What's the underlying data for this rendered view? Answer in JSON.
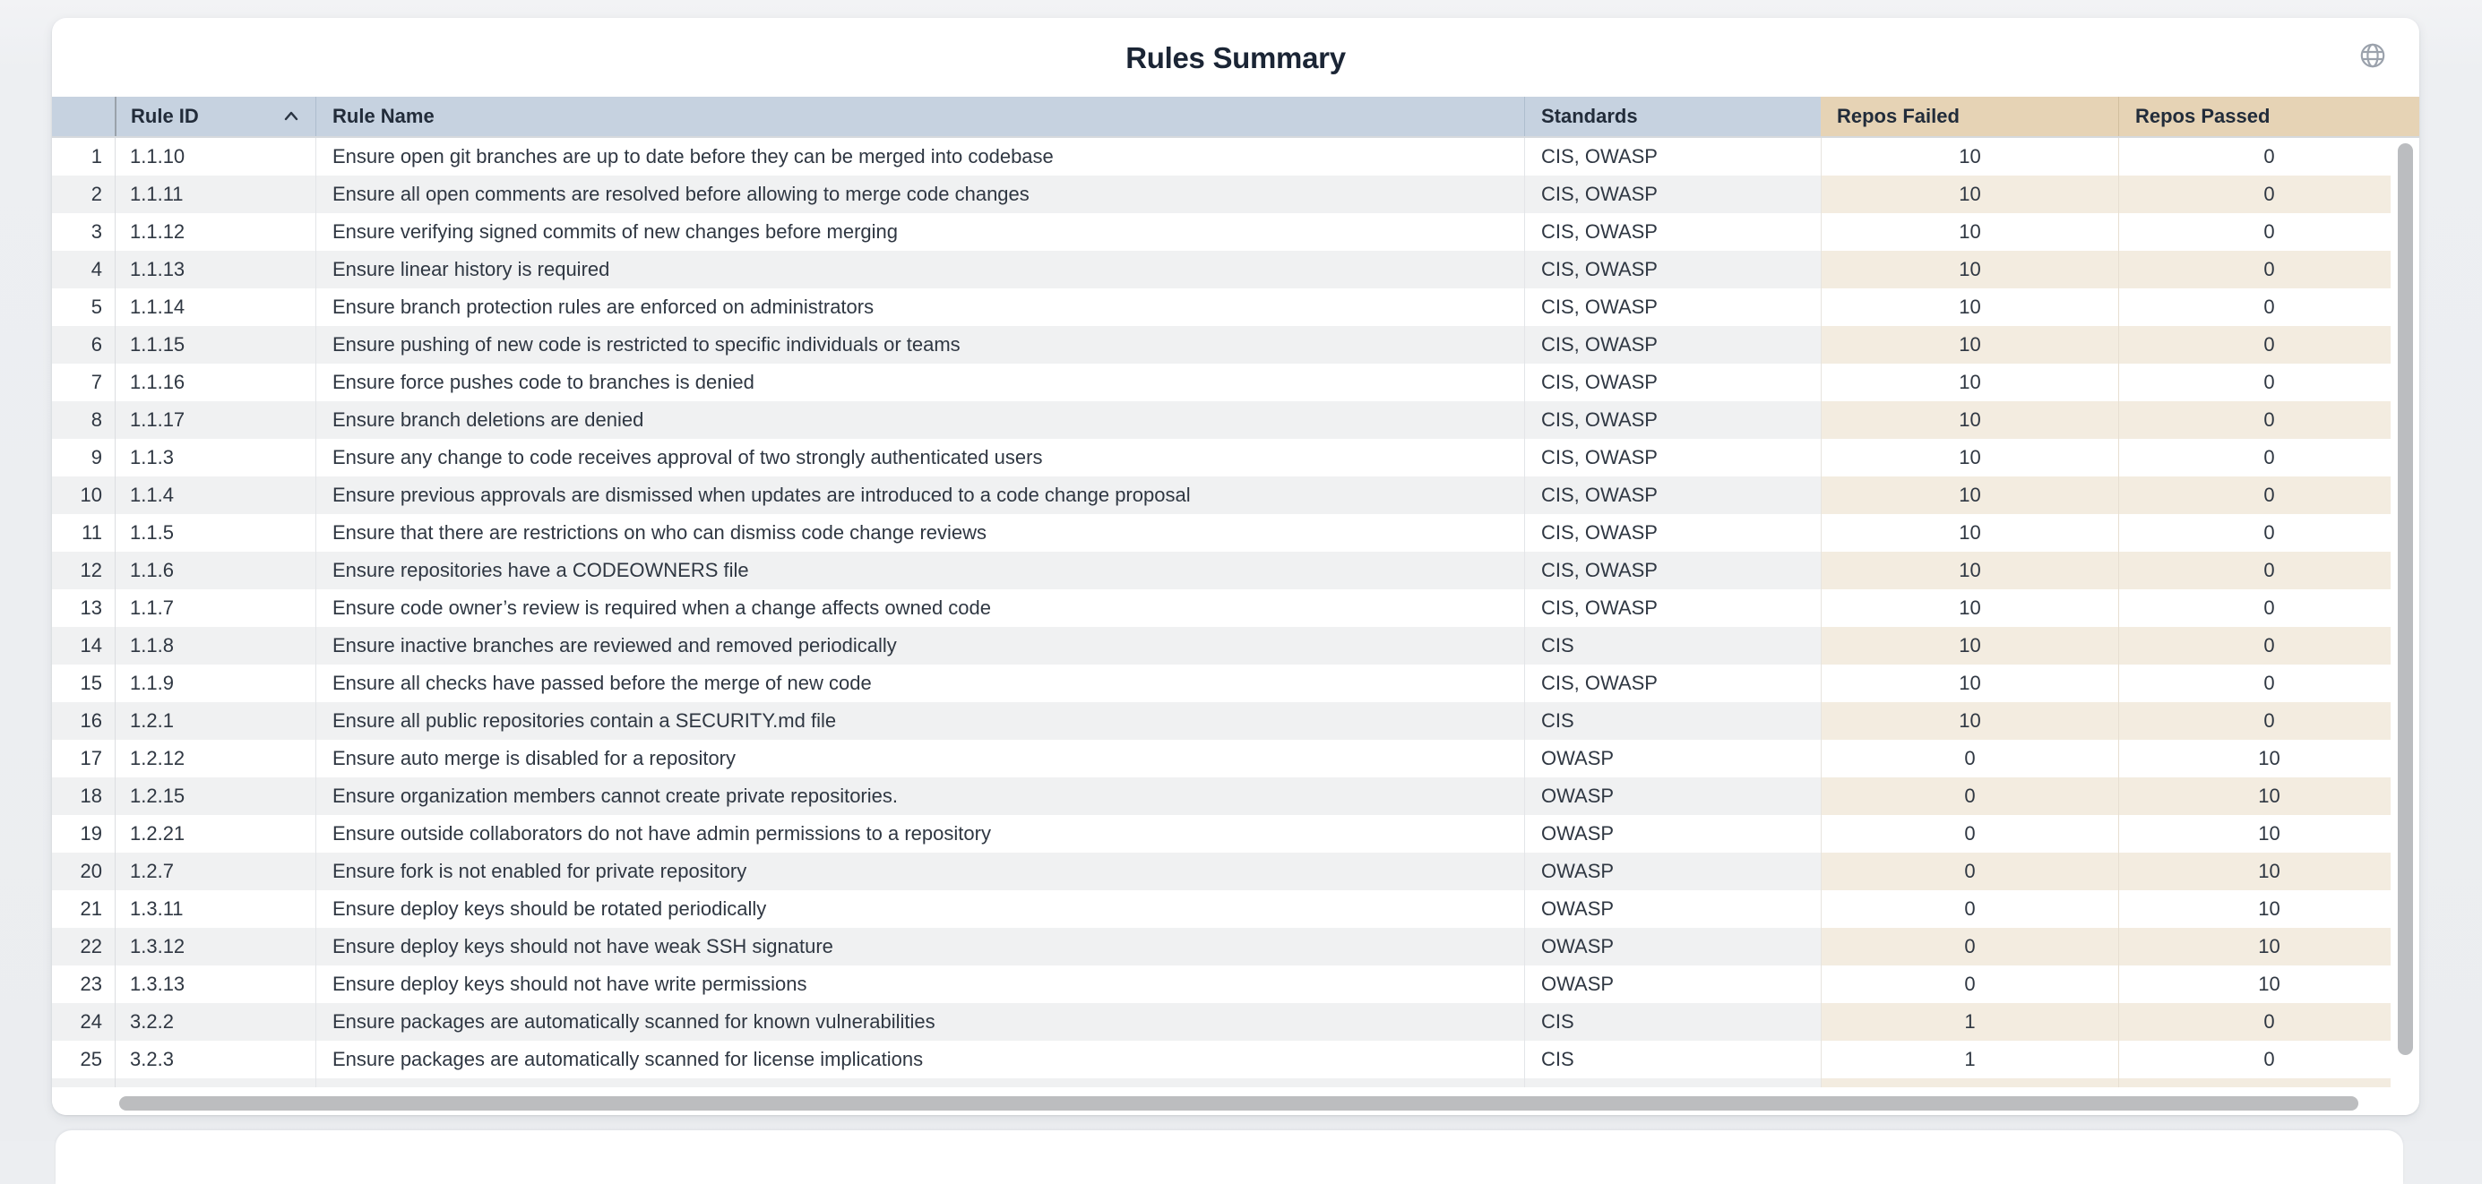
{
  "card": {
    "title": "Rules Summary",
    "header_icon": "globe-icon"
  },
  "table": {
    "columns": [
      {
        "id": "index",
        "label": ""
      },
      {
        "id": "rule_id",
        "label": "Rule ID",
        "sort": "asc"
      },
      {
        "id": "rule_name",
        "label": "Rule Name"
      },
      {
        "id": "standards",
        "label": "Standards"
      },
      {
        "id": "repos_failed",
        "label": "Repos Failed"
      },
      {
        "id": "repos_passed",
        "label": "Repos Passed"
      }
    ],
    "rows": [
      {
        "index": 1,
        "rule_id": "1.1.10",
        "rule_name": "Ensure open git branches are up to date before they can be merged into codebase",
        "standards": "CIS, OWASP",
        "repos_failed": 10,
        "repos_passed": 0
      },
      {
        "index": 2,
        "rule_id": "1.1.11",
        "rule_name": "Ensure all open comments are resolved before allowing to merge code changes",
        "standards": "CIS, OWASP",
        "repos_failed": 10,
        "repos_passed": 0
      },
      {
        "index": 3,
        "rule_id": "1.1.12",
        "rule_name": "Ensure verifying signed commits of new changes before merging",
        "standards": "CIS, OWASP",
        "repos_failed": 10,
        "repos_passed": 0
      },
      {
        "index": 4,
        "rule_id": "1.1.13",
        "rule_name": "Ensure linear history is required",
        "standards": "CIS, OWASP",
        "repos_failed": 10,
        "repos_passed": 0
      },
      {
        "index": 5,
        "rule_id": "1.1.14",
        "rule_name": "Ensure branch protection rules are enforced on administrators",
        "standards": "CIS, OWASP",
        "repos_failed": 10,
        "repos_passed": 0
      },
      {
        "index": 6,
        "rule_id": "1.1.15",
        "rule_name": "Ensure pushing of new code is restricted to specific individuals or teams",
        "standards": "CIS, OWASP",
        "repos_failed": 10,
        "repos_passed": 0
      },
      {
        "index": 7,
        "rule_id": "1.1.16",
        "rule_name": "Ensure force pushes code to branches is denied",
        "standards": "CIS, OWASP",
        "repos_failed": 10,
        "repos_passed": 0
      },
      {
        "index": 8,
        "rule_id": "1.1.17",
        "rule_name": "Ensure branch deletions are denied",
        "standards": "CIS, OWASP",
        "repos_failed": 10,
        "repos_passed": 0
      },
      {
        "index": 9,
        "rule_id": "1.1.3",
        "rule_name": "Ensure any change to code receives approval of two strongly authenticated users",
        "standards": "CIS, OWASP",
        "repos_failed": 10,
        "repos_passed": 0
      },
      {
        "index": 10,
        "rule_id": "1.1.4",
        "rule_name": "Ensure previous approvals are dismissed when updates are introduced to a code change proposal",
        "standards": "CIS, OWASP",
        "repos_failed": 10,
        "repos_passed": 0
      },
      {
        "index": 11,
        "rule_id": "1.1.5",
        "rule_name": "Ensure that there are restrictions on who can dismiss code change reviews",
        "standards": "CIS, OWASP",
        "repos_failed": 10,
        "repos_passed": 0
      },
      {
        "index": 12,
        "rule_id": "1.1.6",
        "rule_name": "Ensure repositories have a CODEOWNERS file",
        "standards": "CIS, OWASP",
        "repos_failed": 10,
        "repos_passed": 0
      },
      {
        "index": 13,
        "rule_id": "1.1.7",
        "rule_name": "Ensure code owner’s review is required when a change affects owned code",
        "standards": "CIS, OWASP",
        "repos_failed": 10,
        "repos_passed": 0
      },
      {
        "index": 14,
        "rule_id": "1.1.8",
        "rule_name": "Ensure inactive branches are reviewed and removed periodically",
        "standards": "CIS",
        "repos_failed": 10,
        "repos_passed": 0
      },
      {
        "index": 15,
        "rule_id": "1.1.9",
        "rule_name": "Ensure all checks have passed before the merge of new code",
        "standards": "CIS, OWASP",
        "repos_failed": 10,
        "repos_passed": 0
      },
      {
        "index": 16,
        "rule_id": "1.2.1",
        "rule_name": "Ensure all public repositories contain a SECURITY.md file",
        "standards": "CIS",
        "repos_failed": 10,
        "repos_passed": 0
      },
      {
        "index": 17,
        "rule_id": "1.2.12",
        "rule_name": "Ensure auto merge is disabled for a repository",
        "standards": "OWASP",
        "repos_failed": 0,
        "repos_passed": 10
      },
      {
        "index": 18,
        "rule_id": "1.2.15",
        "rule_name": "Ensure organization members cannot create private repositories.",
        "standards": "OWASP",
        "repos_failed": 0,
        "repos_passed": 10
      },
      {
        "index": 19,
        "rule_id": "1.2.21",
        "rule_name": "Ensure outside collaborators do not have admin permissions to a repository",
        "standards": "OWASP",
        "repos_failed": 0,
        "repos_passed": 10
      },
      {
        "index": 20,
        "rule_id": "1.2.7",
        "rule_name": "Ensure fork is not enabled for private repository",
        "standards": "OWASP",
        "repos_failed": 0,
        "repos_passed": 10
      },
      {
        "index": 21,
        "rule_id": "1.3.11",
        "rule_name": "Ensure deploy keys should be rotated periodically",
        "standards": "OWASP",
        "repos_failed": 0,
        "repos_passed": 10
      },
      {
        "index": 22,
        "rule_id": "1.3.12",
        "rule_name": "Ensure deploy keys should not have weak SSH signature",
        "standards": "OWASP",
        "repos_failed": 0,
        "repos_passed": 10
      },
      {
        "index": 23,
        "rule_id": "1.3.13",
        "rule_name": "Ensure deploy keys should not have write permissions",
        "standards": "OWASP",
        "repos_failed": 0,
        "repos_passed": 10
      },
      {
        "index": 24,
        "rule_id": "3.2.2",
        "rule_name": "Ensure packages are automatically scanned for known vulnerabilities",
        "standards": "CIS",
        "repos_failed": 1,
        "repos_passed": 0
      },
      {
        "index": 25,
        "rule_id": "3.2.3",
        "rule_name": "Ensure packages are automatically scanned for license implications",
        "standards": "CIS",
        "repos_failed": 1,
        "repos_passed": 0
      }
    ]
  },
  "colors": {
    "header_blue": "#c6d2e0",
    "header_tan": "#e6d3b5",
    "stripe_gray": "#f0f1f2",
    "stripe_tan": "#f3ece0",
    "title_text": "#1b2535",
    "cell_text": "#2f3742",
    "scrollbar_thumb": "#bcbdbf",
    "globe_icon": "#9ba2ac"
  }
}
